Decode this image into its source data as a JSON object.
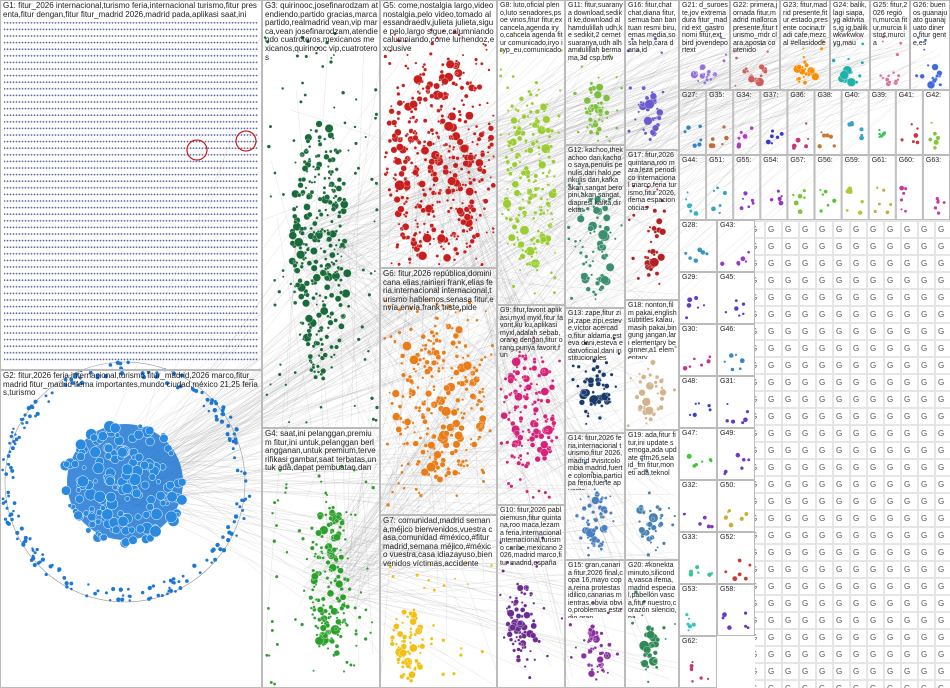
{
  "groups": [
    {
      "label": "G1: fitur_2026 internacional,turismo feria,internacional turismo,fitur presenta,fitur dengan,fitur fitur_madrid 2026,madrid pada,aplikasi saat,ini"
    },
    {
      "label": "G2: fitur,2026 feria,internacional,turismo fitur_madrid,2026 marco,fitur_madrid fitur_madrid ifema importantes,mundo ciudad,méxico 21,25 ferias,turismo"
    },
    {
      "label": "G3: quirinooc,josefinarodzam atendiendo,partido gracias,marca partido,realmadrid vean,vip marca,vean josefinarodzam,atendiendo cuatroteros,mexicanos mexicanos,quirinooc vip,cuatroteros"
    },
    {
      "label": "G4: saat,ini pelanggan,premium fitur,ini untuk,pelanggan berlangganan,untuk premium,terverifikasi gambar,saat terbatas,untuk ada,dapat pembuatan,dan"
    },
    {
      "label": "G5: come,nostalgia largo,video nostalgia,pelo video,tomado alessandraedlv,julieta julieta,sigue pelo,largo sigue,calumniando calumniando,come lurhendoz,exclusive"
    },
    {
      "label": "G6: fitur,2026 república,dominicana elias,rainieri frank,elias feria,internacional internacional,turismo hablemos,senasa fitur,envía envía,frank triste,pide"
    },
    {
      "label": "G7: comunidad,madrid semana,méjico bienvenidos,vuestra casa,comunidad #méxico,#fitur madrid,semana méjico,#méxico vuestra,casa idiazayuso,bienvenidos víctimas,accidente"
    },
    {
      "label": "G8: luto,oficial pleno,luto senadores,psoe vinos,fitur fitur,ex cancela,agenda iryo,cancela agenda fitur comunicado,iryo iryp_eu,comunicado"
    },
    {
      "label": "G9: fitur,favorit aplikasi,myxl myxl,fitur favorit,ku ku,aplikasi myxl,adalah sebab,orang dengan,fitur orang,punya favorit,fun"
    },
    {
      "label": "G10: fitur,2026 pabloiemusn,fitur quintana,roo maca,lezama feria,internacional internacional,turismo caribe,mexicano 2026,madrid marco,fitur madrid,españa"
    },
    {
      "label": "G11: fitur,suaranya download,sedikit ke,download alhamdulillah udh,ke sedikit,2 cemet suaranya,udh alhamdulillah bermama,3d csp,btw"
    },
    {
      "label": "G12: kachoo,thekachoo dari,kachoo saya,penulis penulis,dari halo,penkulis dari,kafka akan,sangat beropini,akan sangat,diapresi kafka,direktur"
    },
    {
      "label": "G13: zape,fitur zipi,zape zipi,esteve,víctor acercado,fitur aldama,esteva dani,esteva edatvoficial,dani institucionales"
    },
    {
      "label": "G14: fitur,2026 feria,internacional turismo,fitur 2026,madrid #visitcolombia madrid,fuerte colombia,participa feria,fuerte apuesta"
    },
    {
      "label": "G15: gran,canaria fitur,2026 final,copa 16,mayo copa,reina protestas idilico,canarias mientras,obvia obvio,problemas estadio,gran"
    },
    {
      "label": "G16: fitur,chat chat,diana fitur,semua ban bantuan resmi biru,emas media,sosia help,cara dana,id"
    },
    {
      "label": "G17: fitur,2026 quintana,roo mara,leza periodico internacional marco,feria turismo,fitur 2026,ifema espacionoticias"
    },
    {
      "label": "G18: nonton,film pakai,english subtitles kalau,masih pakai,bingung jangan,lari elementary beginner,a1 elementary"
    },
    {
      "label": "G19: ada,fitur fitur,ini update semoga,ada update #fm26,sela id_fm fitur,moneti ada,teknol"
    },
    {
      "label": "G20: #konekta minuto,siliconda,vasca ifema,madrid especial,pabellón vasca,fitur nuestro,corazón silencio,pa"
    },
    {
      "label": "G21: d_suroeste,jov extremadura fitur_madrid ext_gastronomi fitur,ext_bird jovendeportext"
    },
    {
      "label": "G22: primera,jornada fitur,madrid mallorca presente,fitur turismo_mdr clara,aposta contenido"
    },
    {
      "label": "G23: fitur,madrid presente,fitur estado,presente cocina,tradi cafe,mezcal #ellasidode"
    },
    {
      "label": "G24: balik,lagi siapa,yg aktivitas,ig ig,balik wkwkwkw yg,mau"
    },
    {
      "label": "G25: fitur,2026 región,murcia fitur,murcia listos,murcia"
    },
    {
      "label": "G26: buenos guanajuato guanajuato dinero,fitur gente,es"
    }
  ],
  "small_groups": [
    "G27:",
    "G35:",
    "G34:",
    "G37:",
    "G36:",
    "G38:",
    "G40:",
    "G39:",
    "G41:",
    "G42:",
    "G44:",
    "G51:",
    "G55:",
    "G54:",
    "G57:",
    "G56:",
    "G59:",
    "G61:",
    "G60:",
    "G63:",
    "G28:",
    "G43:",
    "G29:",
    "G45:",
    "G30:",
    "G46:",
    "G48:",
    "G31:",
    "G47:",
    "G49:",
    "G32:",
    "G50:",
    "G33:",
    "G52:",
    "G53:",
    "G58:",
    "G62:"
  ]
}
